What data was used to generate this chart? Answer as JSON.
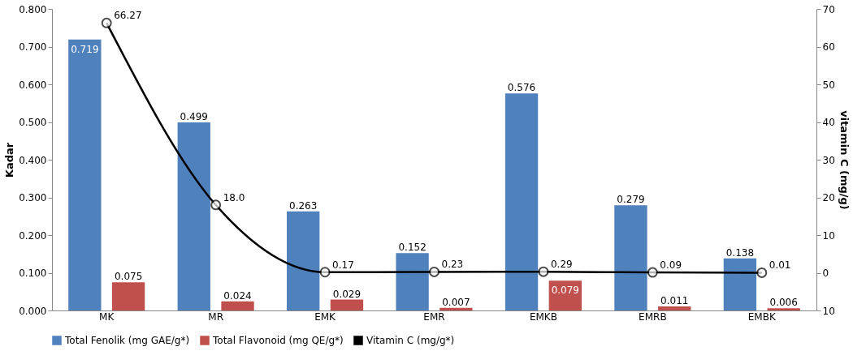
{
  "chart_data": {
    "type": "bar",
    "ylabel": "Kadar",
    "y2label": "vitamin C (mg/g)",
    "categories": [
      "MK",
      "MR",
      "EMK",
      "EMR",
      "EMKB",
      "EMRB",
      "EMBK"
    ],
    "series": [
      {
        "name": "Total Fenolik (mg GAE/g*)",
        "color": "#4f81bd",
        "values": [
          0.719,
          0.499,
          0.263,
          0.152,
          0.576,
          0.279,
          0.138
        ],
        "value_labels": [
          "0.719",
          "0.499",
          "0.263",
          "0.152",
          "0.576",
          "0.279",
          "0.138"
        ]
      },
      {
        "name": "Total Flavonoid (mg QE/g*)",
        "color": "#c0504d",
        "values": [
          0.075,
          0.024,
          0.029,
          0.007,
          0.079,
          0.011,
          0.006
        ],
        "value_labels": [
          "0.075",
          "0.024",
          "0.029",
          "0.007",
          "0.079",
          "0.011",
          "0.006"
        ]
      },
      {
        "name": "Vitamin C (mg/g*)",
        "type": "line",
        "axis": "y2",
        "color": "#000000",
        "marker": "circle",
        "values": [
          66.27,
          18.0,
          0.17,
          0.23,
          0.29,
          0.09,
          0.01
        ],
        "value_labels": [
          "66.27",
          "18.0",
          "0.17",
          "0.23",
          "0.29",
          "0.09",
          "0.01"
        ]
      }
    ],
    "ylim": [
      0,
      0.8
    ],
    "yticks": [
      {
        "value": 0,
        "label": "0.000"
      },
      {
        "value": 0.1,
        "label": "0.100"
      },
      {
        "value": 0.2,
        "label": "0.200"
      },
      {
        "value": 0.3,
        "label": "0.300"
      },
      {
        "value": 0.4,
        "label": "0.400"
      },
      {
        "value": 0.5,
        "label": "0.500"
      },
      {
        "value": 0.6,
        "label": "0.600"
      },
      {
        "value": 0.7,
        "label": "0.700"
      },
      {
        "value": 0.8,
        "label": "0.800"
      }
    ],
    "y2lim": [
      -10,
      70
    ],
    "y2ticks": [
      {
        "value": -10,
        "label": "10"
      },
      0,
      10,
      20,
      30,
      40,
      50,
      60,
      70
    ],
    "grid": false,
    "legend": "bottom"
  }
}
